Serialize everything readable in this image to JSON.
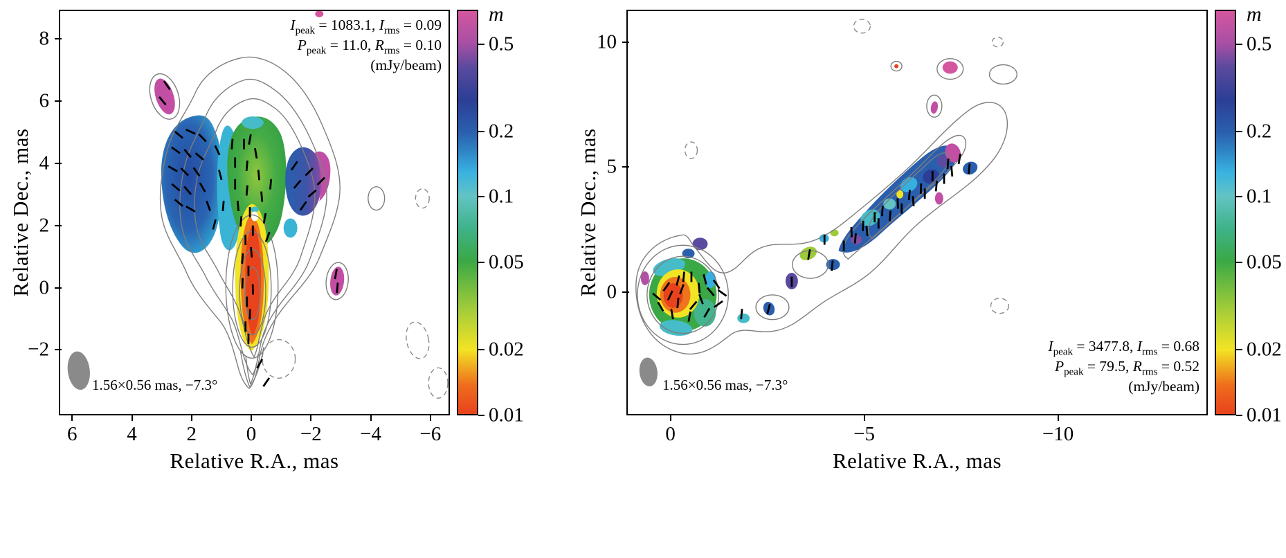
{
  "chart_data": {
    "type": "heatmap",
    "description": "Two-panel VLBI total-intensity contour maps with fractional linear polarization shown in color and EVPA vectors overlaid",
    "colorbar": {
      "title": "m",
      "scale": "log",
      "range": [
        0.01,
        0.72
      ],
      "ticks": [
        {
          "value": 0.5,
          "label": "0.5"
        },
        {
          "value": 0.2,
          "label": "0.2"
        },
        {
          "value": 0.1,
          "label": "0.1"
        },
        {
          "value": 0.05,
          "label": "0.05"
        },
        {
          "value": 0.02,
          "label": "0.02"
        },
        {
          "value": 0.01,
          "label": "0.01"
        }
      ],
      "gradient_stops": [
        {
          "frac": 0.0,
          "color": "#e8431d"
        },
        {
          "frac": 0.07,
          "color": "#ee6c1d"
        },
        {
          "frac": 0.16,
          "color": "#f2e324"
        },
        {
          "frac": 0.26,
          "color": "#a3cc3a"
        },
        {
          "frac": 0.38,
          "color": "#3aa845"
        },
        {
          "frac": 0.46,
          "color": "#3fb289"
        },
        {
          "frac": 0.54,
          "color": "#63c4c3"
        },
        {
          "frac": 0.6,
          "color": "#38b2e1"
        },
        {
          "frac": 0.65,
          "color": "#2f86c6"
        },
        {
          "frac": 0.7,
          "color": "#2a5fae"
        },
        {
          "frac": 0.78,
          "color": "#2c3e96"
        },
        {
          "frac": 0.86,
          "color": "#5a4a9e"
        },
        {
          "frac": 0.92,
          "color": "#a84fa4"
        },
        {
          "frac": 1.0,
          "color": "#d4569f"
        }
      ]
    },
    "panels": [
      {
        "id": "left",
        "xlabel": "Relative R.A., mas",
        "ylabel": "Relative Dec., mas",
        "x_range": [
          6.4,
          -6.7
        ],
        "y_range": [
          8.9,
          -4.15
        ],
        "x_ticks": [
          {
            "value": 6,
            "label": "6"
          },
          {
            "value": 4,
            "label": "4"
          },
          {
            "value": 2,
            "label": "2"
          },
          {
            "value": 0,
            "label": "0"
          },
          {
            "value": -2,
            "label": "−2"
          },
          {
            "value": -4,
            "label": "−4"
          },
          {
            "value": -6,
            "label": "−6"
          }
        ],
        "y_ticks": [
          {
            "value": 8,
            "label": "8"
          },
          {
            "value": 6,
            "label": "6"
          },
          {
            "value": 4,
            "label": "4"
          },
          {
            "value": 2,
            "label": "2"
          },
          {
            "value": 0,
            "label": "0"
          },
          {
            "value": -2,
            "label": "−2"
          }
        ],
        "beam_label": "1.56×0.56 mas, −7.3°",
        "annotations": [
          {
            "segments": [
              {
                "t": "I",
                "i": 1
              },
              {
                "t": "peak",
                "s": 1
              },
              {
                "t": " = 1083.1, "
              },
              {
                "t": "I",
                "i": 1
              },
              {
                "t": "rms",
                "s": 1
              },
              {
                "t": " = 0.09"
              }
            ]
          },
          {
            "segments": [
              {
                "t": "P",
                "i": 1
              },
              {
                "t": "peak",
                "s": 1
              },
              {
                "t": " = 11.0, "
              },
              {
                "t": "R",
                "i": 1
              },
              {
                "t": "rms",
                "s": 1
              },
              {
                "t": " = 0.10"
              }
            ]
          },
          {
            "segments": [
              {
                "t": "(mJy/beam)"
              }
            ]
          }
        ],
        "pol_vectors": [
          [
            2.4,
            4.9,
            -40
          ],
          [
            2.0,
            5.0,
            -25
          ],
          [
            1.6,
            4.8,
            -45
          ],
          [
            2.5,
            4.4,
            -35
          ],
          [
            2.1,
            4.3,
            -50
          ],
          [
            1.7,
            4.2,
            -40
          ],
          [
            2.6,
            3.8,
            -30
          ],
          [
            2.2,
            3.7,
            -45
          ],
          [
            1.8,
            3.7,
            -55
          ],
          [
            2.5,
            3.2,
            -40
          ],
          [
            2.1,
            3.1,
            -50
          ],
          [
            2.4,
            2.7,
            -40
          ],
          [
            2.0,
            2.5,
            -30
          ],
          [
            1.6,
            3.2,
            -60
          ],
          [
            1.4,
            2.6,
            -70
          ],
          [
            1.1,
            4.4,
            -65
          ],
          [
            1.0,
            3.6,
            -75
          ],
          [
            0.9,
            2.6,
            85
          ],
          [
            1.2,
            2.0,
            75
          ],
          [
            0.6,
            4.6,
            85
          ],
          [
            0.2,
            4.6,
            90
          ],
          [
            -0.2,
            4.3,
            100
          ],
          [
            0.5,
            4.0,
            90
          ],
          [
            0.1,
            3.9,
            85
          ],
          [
            -0.3,
            3.6,
            95
          ],
          [
            0.5,
            3.3,
            90
          ],
          [
            0.1,
            3.1,
            85
          ],
          [
            -0.4,
            2.9,
            95
          ],
          [
            0.4,
            2.6,
            95
          ],
          [
            0.0,
            2.4,
            90
          ],
          [
            0.3,
            2.1,
            85
          ],
          [
            -0.1,
            1.8,
            90
          ],
          [
            -0.5,
            2.2,
            80
          ],
          [
            -0.6,
            1.6,
            70
          ],
          [
            -0.7,
            3.3,
            85
          ],
          [
            0.0,
            4.75,
            80
          ],
          [
            0.15,
            1.5,
            90
          ],
          [
            -0.05,
            1.1,
            95
          ],
          [
            0.25,
            0.9,
            85
          ],
          [
            0.05,
            0.5,
            90
          ],
          [
            0.25,
            0.1,
            88
          ],
          [
            -0.1,
            -0.1,
            92
          ],
          [
            0.1,
            -0.5,
            90
          ],
          [
            0.0,
            -0.9,
            88
          ],
          [
            0.15,
            -1.3,
            90
          ],
          [
            0.05,
            -1.7,
            90
          ],
          [
            -1.5,
            3.9,
            55
          ],
          [
            -2.0,
            3.7,
            45
          ],
          [
            -1.6,
            3.3,
            50
          ],
          [
            -2.1,
            3.0,
            40
          ],
          [
            -1.8,
            2.6,
            55
          ],
          [
            -2.4,
            3.4,
            45
          ],
          [
            2.8,
            6.5,
            -55
          ],
          [
            2.95,
            6.0,
            -50
          ],
          [
            -2.9,
            0.4,
            80
          ],
          [
            -2.95,
            -0.05,
            85
          ],
          [
            -0.33,
            -2.5,
            60
          ],
          [
            -0.55,
            -3.1,
            55
          ]
        ]
      },
      {
        "id": "right",
        "xlabel": "Relative R.A., mas",
        "ylabel": "Relative Dec., mas",
        "x_range": [
          1.1,
          -13.9
        ],
        "y_range": [
          11.25,
          -5.0
        ],
        "x_ticks": [
          {
            "value": 0,
            "label": "0"
          },
          {
            "value": -5,
            "label": "−5"
          },
          {
            "value": -10,
            "label": "−10"
          }
        ],
        "y_ticks": [
          {
            "value": 10,
            "label": "10"
          },
          {
            "value": 5,
            "label": "5"
          },
          {
            "value": 0,
            "label": "0"
          }
        ],
        "beam_label": "1.56×0.56 mas, −7.3°",
        "annotations": [
          {
            "segments": [
              {
                "t": "I",
                "i": 1
              },
              {
                "t": "peak",
                "s": 1
              },
              {
                "t": " = 3477.8, "
              },
              {
                "t": "I",
                "i": 1
              },
              {
                "t": "rms",
                "s": 1
              },
              {
                "t": " = 0.68"
              }
            ]
          },
          {
            "segments": [
              {
                "t": "P",
                "i": 1
              },
              {
                "t": "peak",
                "s": 1
              },
              {
                "t": " = 79.5, "
              },
              {
                "t": "R",
                "i": 1
              },
              {
                "t": "rms",
                "s": 1
              },
              {
                "t": " = 0.52"
              }
            ]
          },
          {
            "segments": [
              {
                "t": "(mJy/beam)"
              }
            ]
          }
        ],
        "pol_vectors": [
          [
            0.1,
            0.15,
            55
          ],
          [
            -0.2,
            0.4,
            75
          ],
          [
            -0.55,
            0.55,
            90
          ],
          [
            -0.9,
            0.45,
            105
          ],
          [
            -1.2,
            0.25,
            125
          ],
          [
            -1.35,
            -0.1,
            145
          ],
          [
            -1.25,
            -0.55,
            35
          ],
          [
            -0.95,
            -0.9,
            60
          ],
          [
            -0.5,
            -1.05,
            80
          ],
          [
            -0.05,
            -0.95,
            100
          ],
          [
            0.25,
            -0.65,
            120
          ],
          [
            0.35,
            -0.25,
            140
          ],
          [
            -0.3,
            0.05,
            70
          ],
          [
            -0.8,
            -0.35,
            110
          ],
          [
            -0.75,
            0.1,
            95
          ],
          [
            -0.2,
            -0.5,
            85
          ],
          [
            -1.05,
            -0.05,
            130
          ],
          [
            0.0,
            -0.2,
            65
          ],
          [
            -0.6,
            -0.6,
            50
          ],
          [
            -0.35,
            0.55,
            85
          ],
          [
            -1.85,
            -0.95,
            85
          ],
          [
            -2.55,
            -0.75,
            75
          ],
          [
            -3.15,
            0.35,
            90
          ],
          [
            -3.6,
            1.45,
            80
          ],
          [
            -4.2,
            1.0,
            85
          ],
          [
            -4.0,
            2.05,
            90
          ],
          [
            -4.5,
            1.8,
            90
          ],
          [
            -4.8,
            2.1,
            85
          ],
          [
            -5.1,
            2.4,
            95
          ],
          [
            -5.4,
            2.7,
            90
          ],
          [
            -5.7,
            3.0,
            85
          ],
          [
            -6.0,
            3.3,
            90
          ],
          [
            -6.3,
            3.6,
            95
          ],
          [
            -6.6,
            3.9,
            90
          ],
          [
            -6.9,
            4.2,
            85
          ],
          [
            -7.1,
            4.5,
            90
          ],
          [
            -7.3,
            4.8,
            95
          ],
          [
            -5.0,
            2.6,
            88
          ],
          [
            -5.9,
            3.5,
            92
          ],
          [
            -6.5,
            4.1,
            88
          ],
          [
            -4.7,
            2.35,
            92
          ],
          [
            -5.5,
            3.2,
            86
          ],
          [
            -6.2,
            3.85,
            85
          ],
          [
            -6.8,
            4.6,
            90
          ],
          [
            -7.2,
            5.1,
            85
          ],
          [
            -5.3,
            2.95,
            90
          ],
          [
            -7.5,
            5.3,
            80
          ],
          [
            -7.75,
            4.9,
            85
          ]
        ]
      }
    ]
  }
}
